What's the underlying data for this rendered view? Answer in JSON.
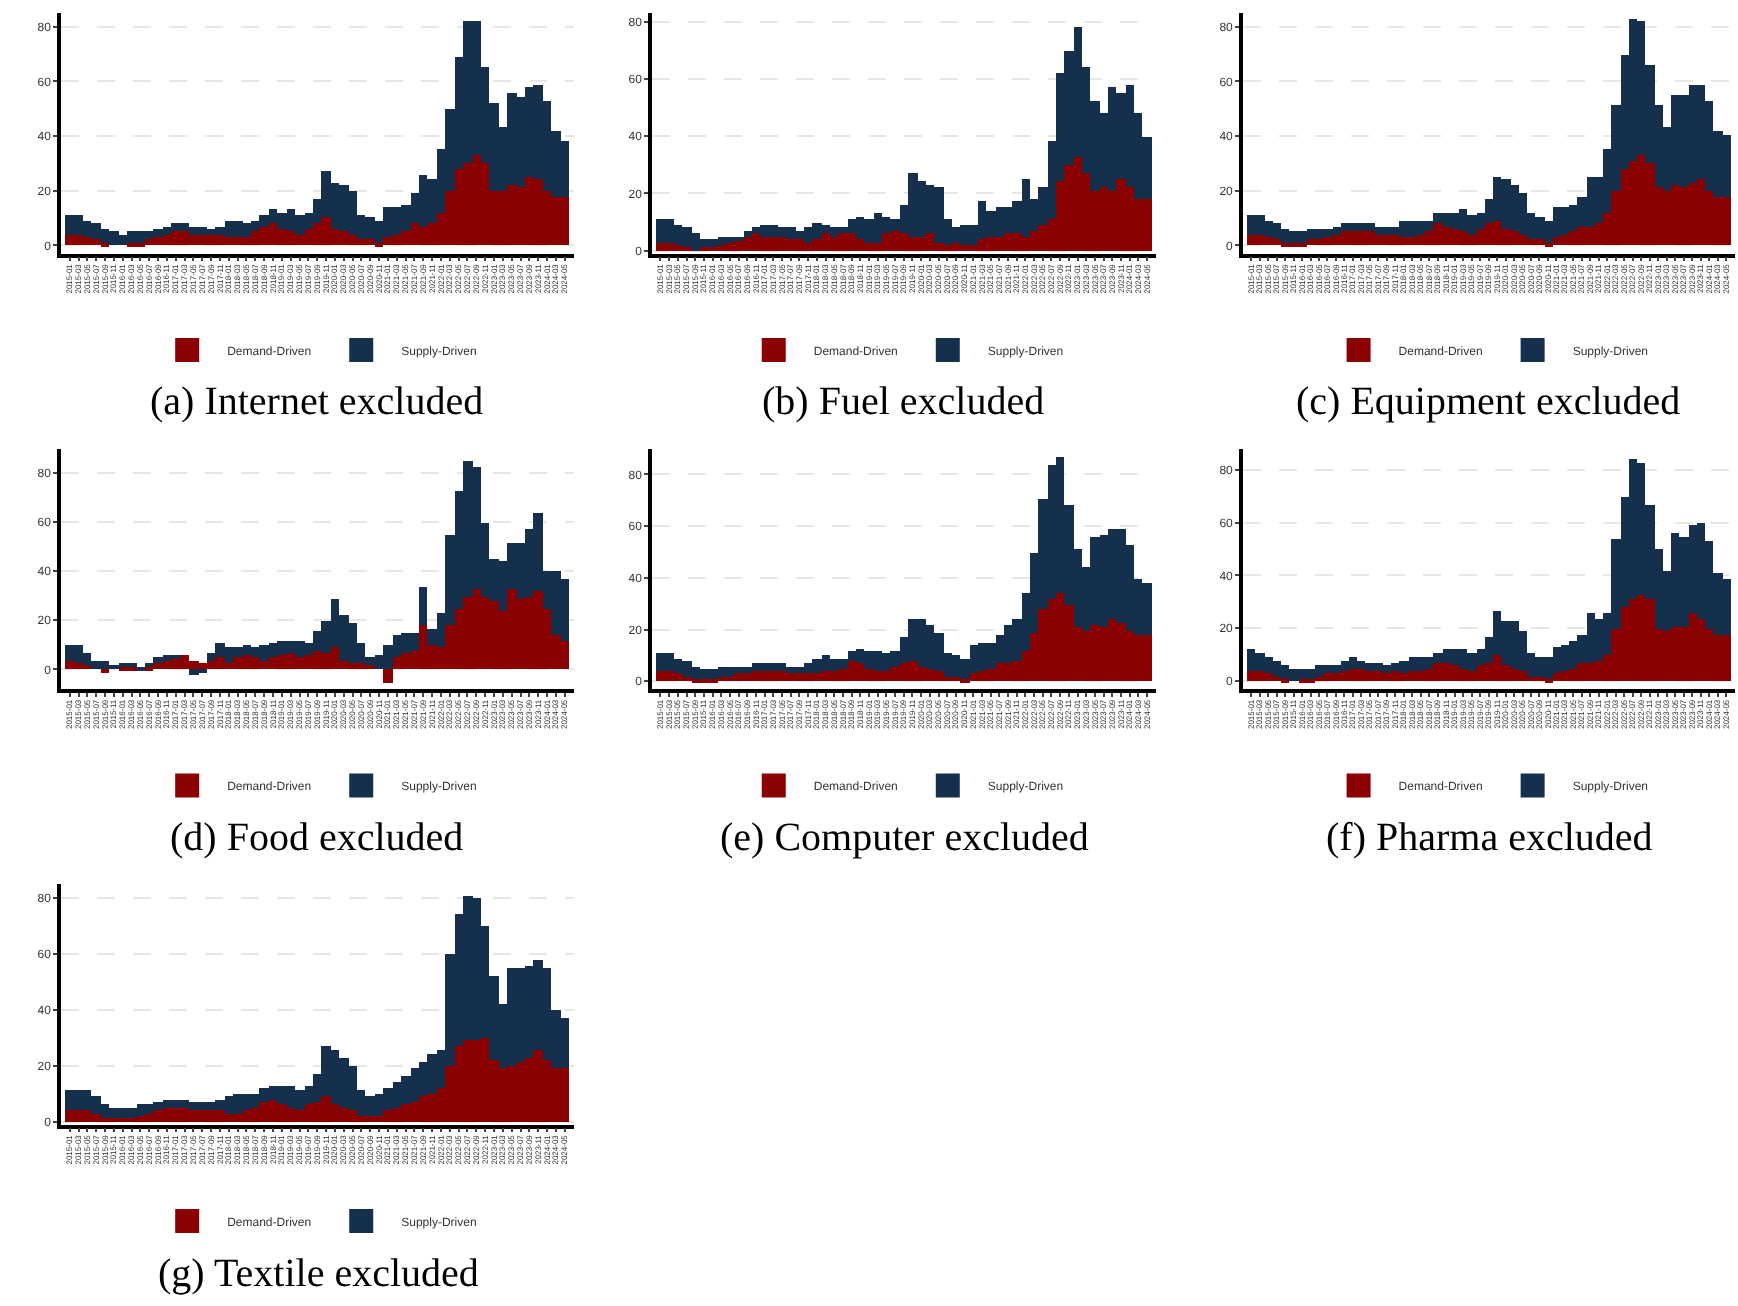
{
  "chart_data": [
    {
      "type": "bar",
      "stacked": true,
      "title": "(a) Internet excluded",
      "legend": "bottom",
      "grid": "y",
      "ylim": [
        -3,
        85
      ],
      "yticks": [
        0,
        20,
        40,
        60,
        80
      ],
      "categories": [
        "2015-01",
        "2015-03",
        "2015-05",
        "2015-07",
        "2015-09",
        "2015-11",
        "2016-01",
        "2016-03",
        "2016-05",
        "2016-07",
        "2016-09",
        "2016-11",
        "2017-01",
        "2017-03",
        "2017-05",
        "2017-07",
        "2017-09",
        "2017-11",
        "2018-01",
        "2018-03",
        "2018-05",
        "2018-07",
        "2018-09",
        "2018-11",
        "2019-01",
        "2019-03",
        "2019-05",
        "2019-07",
        "2019-09",
        "2019-11",
        "2020-01",
        "2020-03",
        "2020-05",
        "2020-07",
        "2020-09",
        "2020-11",
        "2021-01",
        "2021-03",
        "2021-05",
        "2021-07",
        "2021-09",
        "2021-11",
        "2022-01",
        "2022-03",
        "2022-05",
        "2022-07",
        "2022-09",
        "2022-11",
        "2023-01",
        "2023-03",
        "2023-05",
        "2023-07",
        "2023-09",
        "2023-11",
        "2024-01",
        "2024-03",
        "2024-05"
      ],
      "series": [
        {
          "name": "Demand-Driven",
          "color": "#8b0000",
          "values": [
            4,
            4,
            3,
            2,
            1,
            0,
            0,
            1,
            1,
            2,
            3,
            4,
            5,
            5,
            4,
            4,
            4,
            4,
            3,
            3,
            3,
            5,
            7,
            8,
            6,
            5,
            4,
            6,
            8,
            10,
            6,
            5,
            4,
            2,
            2,
            1,
            3,
            4,
            5,
            8,
            7,
            8,
            12,
            20,
            28,
            30,
            33,
            30,
            20,
            20,
            22,
            21,
            25,
            24,
            20,
            18,
            18
          ]
        },
        {
          "name": "Supply-Driven",
          "color": "#14304d",
          "values": [
            7,
            7,
            6,
            6,
            5,
            5,
            4,
            4,
            4,
            3,
            3,
            3,
            3,
            3,
            3,
            3,
            2,
            3,
            6,
            6,
            5,
            4,
            4,
            5,
            6,
            8,
            7,
            6,
            9,
            17,
            17,
            17,
            16,
            9,
            8,
            8,
            11,
            10,
            10,
            11,
            19,
            16,
            23,
            30,
            41,
            52,
            49,
            35,
            32,
            23,
            34,
            33,
            33,
            35,
            33,
            24,
            20
          ]
        }
      ]
    },
    {
      "type": "bar",
      "stacked": true,
      "title": "(b) Fuel excluded",
      "legend": "bottom",
      "grid": "y",
      "ylim": [
        -1,
        83
      ],
      "yticks": [
        0,
        20,
        40,
        60,
        80
      ],
      "categories": [
        "2015-01",
        "2015-03",
        "2015-05",
        "2015-07",
        "2015-09",
        "2015-11",
        "2016-01",
        "2016-03",
        "2016-05",
        "2016-07",
        "2016-09",
        "2016-11",
        "2017-01",
        "2017-03",
        "2017-05",
        "2017-07",
        "2017-09",
        "2017-11",
        "2018-01",
        "2018-03",
        "2018-05",
        "2018-07",
        "2018-09",
        "2018-11",
        "2019-01",
        "2019-03",
        "2019-05",
        "2019-07",
        "2019-09",
        "2019-11",
        "2020-01",
        "2020-03",
        "2020-05",
        "2020-07",
        "2020-09",
        "2020-11",
        "2021-01",
        "2021-03",
        "2021-05",
        "2021-07",
        "2021-09",
        "2021-11",
        "2022-01",
        "2022-03",
        "2022-05",
        "2022-07",
        "2022-09",
        "2022-11",
        "2023-01",
        "2023-03",
        "2023-05",
        "2023-07",
        "2023-09",
        "2023-11",
        "2024-01",
        "2024-03",
        "2024-05"
      ],
      "series": [
        {
          "name": "Demand-Driven",
          "color": "#8b0000",
          "values": [
            3,
            3,
            2,
            1,
            0,
            1,
            1,
            2,
            3,
            4,
            5,
            6,
            5,
            5,
            5,
            4,
            4,
            3,
            4,
            6,
            5,
            6,
            6,
            4,
            3,
            3,
            6,
            7,
            6,
            5,
            5,
            6,
            3,
            2,
            3,
            2,
            2,
            4,
            5,
            5,
            6,
            6,
            5,
            7,
            9,
            11,
            24,
            30,
            33,
            27,
            21,
            22,
            21,
            25,
            22,
            18,
            18
          ]
        },
        {
          "name": "Supply-Driven",
          "color": "#14304d",
          "values": [
            8,
            8,
            7,
            7,
            6,
            3,
            3,
            3,
            2,
            1,
            2,
            2,
            4,
            4,
            3,
            4,
            3,
            5,
            6,
            3,
            3,
            2,
            5,
            8,
            8,
            10,
            6,
            4,
            10,
            22,
            19,
            17,
            19,
            9,
            5,
            7,
            7,
            13,
            9,
            10,
            9,
            11,
            20,
            11,
            13,
            27,
            38,
            40,
            45,
            37,
            31,
            26,
            36,
            30,
            36,
            30,
            22
          ]
        }
      ]
    },
    {
      "type": "bar",
      "stacked": true,
      "title": "(c) Equipment excluded",
      "legend": "bottom",
      "grid": "y",
      "ylim": [
        -3,
        85
      ],
      "yticks": [
        0,
        20,
        40,
        60,
        80
      ],
      "categories": [
        "2015-01",
        "2015-03",
        "2015-05",
        "2015-07",
        "2015-09",
        "2015-11",
        "2016-01",
        "2016-03",
        "2016-05",
        "2016-07",
        "2016-09",
        "2016-11",
        "2017-01",
        "2017-03",
        "2017-05",
        "2017-07",
        "2017-09",
        "2017-11",
        "2018-01",
        "2018-03",
        "2018-05",
        "2018-07",
        "2018-09",
        "2018-11",
        "2019-01",
        "2019-03",
        "2019-05",
        "2019-07",
        "2019-09",
        "2019-11",
        "2020-01",
        "2020-03",
        "2020-05",
        "2020-07",
        "2020-09",
        "2020-11",
        "2021-01",
        "2021-03",
        "2021-05",
        "2021-07",
        "2021-09",
        "2021-11",
        "2022-01",
        "2022-03",
        "2022-05",
        "2022-07",
        "2022-09",
        "2022-11",
        "2023-01",
        "2023-03",
        "2023-05",
        "2023-07",
        "2023-09",
        "2023-11",
        "2024-01",
        "2024-03",
        "2024-05"
      ],
      "series": [
        {
          "name": "Demand-Driven",
          "color": "#8b0000",
          "values": [
            4,
            4,
            3,
            2,
            1,
            1,
            1,
            2,
            2,
            3,
            4,
            5,
            5,
            5,
            5,
            4,
            4,
            4,
            3,
            3,
            4,
            5,
            8,
            7,
            6,
            5,
            4,
            6,
            8,
            9,
            6,
            5,
            4,
            2,
            2,
            1,
            3,
            4,
            5,
            7,
            7,
            8,
            12,
            20,
            28,
            31,
            33,
            30,
            21,
            20,
            22,
            21,
            23,
            24,
            20,
            18,
            18
          ]
        },
        {
          "name": "Supply-Driven",
          "color": "#14304d",
          "values": [
            7,
            7,
            6,
            6,
            5,
            4,
            4,
            4,
            4,
            3,
            3,
            3,
            3,
            3,
            3,
            3,
            3,
            3,
            6,
            6,
            5,
            4,
            4,
            5,
            6,
            8,
            7,
            6,
            9,
            16,
            18,
            17,
            15,
            10,
            8,
            8,
            11,
            10,
            10,
            11,
            18,
            17,
            23,
            31,
            42,
            52,
            49,
            36,
            30,
            23,
            33,
            34,
            36,
            35,
            33,
            24,
            22
          ]
        }
      ]
    },
    {
      "type": "bar",
      "stacked": true,
      "title": "(d) Food excluded",
      "legend": "bottom",
      "grid": "y",
      "ylim": [
        -8,
        90
      ],
      "yticks": [
        0,
        20,
        40,
        60,
        80
      ],
      "categories": [
        "2015-01",
        "2015-03",
        "2015-05",
        "2015-07",
        "2015-09",
        "2015-11",
        "2016-01",
        "2016-03",
        "2016-05",
        "2016-07",
        "2016-09",
        "2016-11",
        "2017-01",
        "2017-03",
        "2017-05",
        "2017-07",
        "2017-09",
        "2017-11",
        "2018-01",
        "2018-03",
        "2018-05",
        "2018-07",
        "2018-09",
        "2018-11",
        "2019-01",
        "2019-03",
        "2019-05",
        "2019-07",
        "2019-09",
        "2019-11",
        "2020-01",
        "2020-03",
        "2020-05",
        "2020-07",
        "2020-09",
        "2020-11",
        "2021-01",
        "2021-03",
        "2021-05",
        "2021-07",
        "2021-09",
        "2021-11",
        "2022-01",
        "2022-03",
        "2022-05",
        "2022-07",
        "2022-09",
        "2022-11",
        "2023-01",
        "2023-03",
        "2023-05",
        "2023-07",
        "2023-09",
        "2023-11",
        "2024-01",
        "2024-03",
        "2024-05"
      ],
      "series": [
        {
          "name": "Demand-Driven",
          "color": "#8b0000",
          "values": [
            4,
            3,
            2,
            0,
            -1,
            0,
            1,
            1,
            0,
            1,
            3,
            4,
            5,
            6,
            4,
            3,
            4,
            5,
            3,
            5,
            6,
            5,
            4,
            5,
            6,
            7,
            5,
            6,
            8,
            7,
            9,
            4,
            3,
            3,
            2,
            0,
            -5,
            5,
            7,
            8,
            18,
            10,
            9,
            18,
            25,
            30,
            33,
            30,
            28,
            24,
            33,
            29,
            30,
            32,
            25,
            14,
            12
          ]
        },
        {
          "name": "Supply-Driven",
          "color": "#14304d",
          "values": [
            6,
            7,
            5,
            4,
            4,
            2,
            2,
            2,
            1,
            2,
            2,
            2,
            1,
            0,
            -2,
            -1,
            3,
            6,
            6,
            4,
            4,
            4,
            6,
            6,
            6,
            5,
            7,
            5,
            8,
            13,
            20,
            18,
            16,
            8,
            3,
            6,
            10,
            9,
            8,
            7,
            16,
            7,
            14,
            37,
            48,
            55,
            50,
            30,
            17,
            20,
            19,
            23,
            27,
            32,
            15,
            26,
            25
          ]
        }
      ]
    },
    {
      "type": "bar",
      "stacked": true,
      "title": "(e) Computer excluded",
      "legend": "bottom",
      "grid": "y",
      "ylim": [
        -3,
        90
      ],
      "yticks": [
        0,
        20,
        40,
        60,
        80
      ],
      "categories": [
        "2015-01",
        "2015-03",
        "2015-05",
        "2015-07",
        "2015-09",
        "2015-11",
        "2016-01",
        "2016-03",
        "2016-05",
        "2016-07",
        "2016-09",
        "2016-11",
        "2017-01",
        "2017-03",
        "2017-05",
        "2017-07",
        "2017-09",
        "2017-11",
        "2018-01",
        "2018-03",
        "2018-05",
        "2018-07",
        "2018-09",
        "2018-11",
        "2019-01",
        "2019-03",
        "2019-05",
        "2019-07",
        "2019-09",
        "2019-11",
        "2020-01",
        "2020-03",
        "2020-05",
        "2020-07",
        "2020-09",
        "2020-11",
        "2021-01",
        "2021-03",
        "2021-05",
        "2021-07",
        "2021-09",
        "2021-11",
        "2022-01",
        "2022-03",
        "2022-05",
        "2022-07",
        "2022-09",
        "2022-11",
        "2023-01",
        "2023-03",
        "2023-05",
        "2023-07",
        "2023-09",
        "2023-11",
        "2024-01",
        "2024-03",
        "2024-05"
      ],
      "series": [
        {
          "name": "Demand-Driven",
          "color": "#8b0000",
          "values": [
            4,
            4,
            3,
            2,
            1,
            1,
            1,
            2,
            2,
            3,
            3,
            4,
            4,
            4,
            4,
            3,
            3,
            3,
            3,
            4,
            4,
            5,
            8,
            7,
            5,
            4,
            4,
            6,
            7,
            8,
            6,
            5,
            4,
            2,
            2,
            1,
            3,
            4,
            5,
            7,
            7,
            8,
            12,
            19,
            28,
            32,
            34,
            30,
            21,
            20,
            22,
            21,
            24,
            23,
            20,
            18,
            18
          ]
        },
        {
          "name": "Supply-Driven",
          "color": "#14304d",
          "values": [
            7,
            7,
            6,
            6,
            5,
            4,
            4,
            4,
            4,
            3,
            3,
            3,
            3,
            3,
            3,
            3,
            3,
            4,
            6,
            6,
            5,
            4,
            4,
            6,
            7,
            8,
            7,
            6,
            10,
            16,
            18,
            17,
            15,
            9,
            8,
            8,
            11,
            11,
            10,
            11,
            15,
            16,
            22,
            31,
            43,
            52,
            53,
            38,
            30,
            24,
            34,
            36,
            35,
            36,
            33,
            22,
            20
          ]
        }
      ]
    },
    {
      "type": "bar",
      "stacked": true,
      "title": "(f) Pharma excluded",
      "legend": "bottom",
      "grid": "y",
      "ylim": [
        -3,
        88
      ],
      "yticks": [
        0,
        20,
        40,
        60,
        80
      ],
      "categories": [
        "2015-01",
        "2015-03",
        "2015-05",
        "2015-07",
        "2015-09",
        "2015-11",
        "2016-01",
        "2016-03",
        "2016-05",
        "2016-07",
        "2016-09",
        "2016-11",
        "2017-01",
        "2017-03",
        "2017-05",
        "2017-07",
        "2017-09",
        "2017-11",
        "2018-01",
        "2018-03",
        "2018-05",
        "2018-07",
        "2018-09",
        "2018-11",
        "2019-01",
        "2019-03",
        "2019-05",
        "2019-07",
        "2019-09",
        "2019-11",
        "2020-01",
        "2020-03",
        "2020-05",
        "2020-07",
        "2020-09",
        "2020-11",
        "2021-01",
        "2021-03",
        "2021-05",
        "2021-07",
        "2021-09",
        "2021-11",
        "2022-01",
        "2022-03",
        "2022-05",
        "2022-07",
        "2022-09",
        "2022-11",
        "2023-01",
        "2023-03",
        "2023-05",
        "2023-07",
        "2023-09",
        "2023-11",
        "2024-01",
        "2024-03",
        "2024-05"
      ],
      "series": [
        {
          "name": "Demand-Driven",
          "color": "#8b0000",
          "values": [
            4,
            4,
            3,
            2,
            1,
            0,
            1,
            1,
            2,
            3,
            3,
            4,
            5,
            5,
            4,
            4,
            3,
            4,
            3,
            4,
            4,
            5,
            7,
            7,
            6,
            5,
            4,
            6,
            7,
            10,
            6,
            5,
            4,
            2,
            2,
            1,
            3,
            4,
            5,
            7,
            7,
            8,
            10,
            20,
            28,
            31,
            33,
            31,
            20,
            19,
            21,
            21,
            26,
            24,
            20,
            18,
            18
          ]
        },
        {
          "name": "Supply-Driven",
          "color": "#14304d",
          "values": [
            8,
            7,
            6,
            6,
            5,
            5,
            4,
            4,
            4,
            3,
            3,
            4,
            4,
            3,
            3,
            3,
            3,
            3,
            5,
            5,
            5,
            4,
            4,
            5,
            6,
            7,
            7,
            6,
            10,
            17,
            17,
            18,
            15,
            9,
            7,
            8,
            10,
            10,
            10,
            11,
            19,
            16,
            16,
            34,
            42,
            53,
            50,
            36,
            30,
            23,
            35,
            34,
            33,
            36,
            33,
            23,
            21
          ]
        }
      ]
    },
    {
      "type": "bar",
      "stacked": true,
      "title": "(g) Textile excluded",
      "legend": "bottom",
      "grid": "y",
      "ylim": [
        -1,
        85
      ],
      "yticks": [
        0,
        20,
        40,
        60,
        80
      ],
      "categories": [
        "2015-01",
        "2015-03",
        "2015-05",
        "2015-07",
        "2015-09",
        "2015-11",
        "2016-01",
        "2016-03",
        "2016-05",
        "2016-07",
        "2016-09",
        "2016-11",
        "2017-01",
        "2017-03",
        "2017-05",
        "2017-07",
        "2017-09",
        "2017-11",
        "2018-01",
        "2018-03",
        "2018-05",
        "2018-07",
        "2018-09",
        "2018-11",
        "2019-01",
        "2019-03",
        "2019-05",
        "2019-07",
        "2019-09",
        "2019-11",
        "2020-01",
        "2020-03",
        "2020-05",
        "2020-07",
        "2020-09",
        "2020-11",
        "2021-01",
        "2021-03",
        "2021-05",
        "2021-07",
        "2021-09",
        "2021-11",
        "2022-01",
        "2022-03",
        "2022-05",
        "2022-07",
        "2022-09",
        "2022-11",
        "2023-01",
        "2023-03",
        "2023-05",
        "2023-07",
        "2023-09",
        "2023-11",
        "2024-01",
        "2024-03",
        "2024-05"
      ],
      "series": [
        {
          "name": "Demand-Driven",
          "color": "#8b0000",
          "values": [
            4,
            4,
            4,
            3,
            1,
            1,
            1,
            1,
            2,
            3,
            4,
            5,
            5,
            5,
            4,
            4,
            4,
            4,
            3,
            3,
            4,
            5,
            7,
            8,
            6,
            5,
            4,
            6,
            7,
            9,
            6,
            5,
            4,
            2,
            2,
            2,
            4,
            5,
            6,
            7,
            9,
            10,
            12,
            20,
            27,
            29,
            29,
            30,
            22,
            19,
            20,
            21,
            23,
            26,
            22,
            19,
            19
          ]
        },
        {
          "name": "Supply-Driven",
          "color": "#14304d",
          "values": [
            7,
            7,
            7,
            6,
            5,
            4,
            4,
            4,
            4,
            3,
            3,
            3,
            3,
            3,
            3,
            3,
            3,
            4,
            6,
            7,
            6,
            5,
            5,
            5,
            7,
            8,
            7,
            7,
            10,
            18,
            20,
            18,
            16,
            9,
            7,
            8,
            8,
            9,
            10,
            12,
            12,
            14,
            14,
            40,
            47,
            52,
            51,
            40,
            30,
            23,
            35,
            34,
            33,
            32,
            33,
            21,
            18
          ]
        }
      ]
    }
  ]
}
